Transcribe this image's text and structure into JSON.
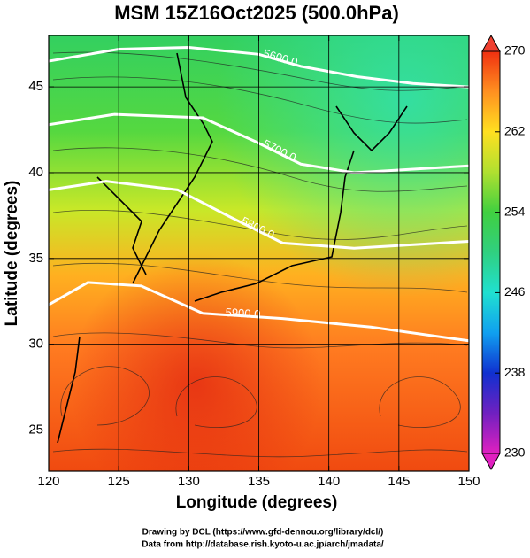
{
  "chart_data": {
    "type": "map",
    "title": "MSM 15Z16Oct2025 (500.0hPa)",
    "x_label": "Longitude (degrees)",
    "y_label": "Latitude  (degrees)",
    "xlim": [
      120,
      150
    ],
    "ylim": [
      22.6,
      48
    ],
    "xticks": [
      120,
      125,
      130,
      135,
      140,
      145,
      150
    ],
    "yticks": [
      25,
      30,
      35,
      40,
      45
    ],
    "grid": true,
    "colorbar": {
      "lim": [
        230,
        270
      ],
      "ticks": [
        230,
        238,
        246,
        254,
        262,
        270
      ]
    },
    "contours": [
      {
        "label": "5600.0",
        "color": "#ffffff",
        "lon": [
          120,
          125,
          130,
          135,
          138,
          142,
          146,
          150
        ],
        "lat": [
          46.5,
          47.2,
          47.3,
          46.9,
          46.2,
          45.6,
          45.2,
          45.0
        ]
      },
      {
        "label": "5700.0",
        "color": "#ffffff",
        "lon": [
          120,
          124.7,
          131,
          134.8,
          138,
          141.8,
          150
        ],
        "lat": [
          42.8,
          43.4,
          43.2,
          41.8,
          40.5,
          40.0,
          40.4
        ]
      },
      {
        "label": "5800.0",
        "color": "#ffffff",
        "lon": [
          120,
          124.1,
          129.2,
          133,
          136.7,
          141.8,
          150
        ],
        "lat": [
          39.0,
          39.5,
          39.0,
          37.4,
          35.9,
          35.6,
          36.0
        ]
      },
      {
        "label": "5900.0",
        "color": "#ffffff",
        "lon": [
          120,
          122.8,
          126.6,
          131,
          136.7,
          143,
          150
        ],
        "lat": [
          32.3,
          33.6,
          33.4,
          31.8,
          31.5,
          31.0,
          30.2
        ]
      }
    ],
    "footer": [
      "Drawing by DCL (https://www.gfd-dennou.org/library/dcl/)",
      "Data from http://database.rish.kyoto-u.ac.jp/arch/jmadata/"
    ]
  }
}
